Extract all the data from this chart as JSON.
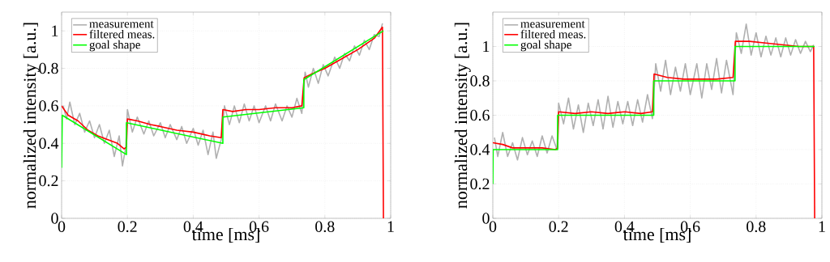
{
  "chart_data": [
    {
      "type": "line",
      "xlabel": "time [ms]",
      "ylabel": "normalized intensity [a.u.]",
      "xlim": [
        0,
        1
      ],
      "ylim": [
        0,
        1.1
      ],
      "xticks": [
        0,
        0.2,
        0.4,
        0.6,
        0.8,
        1
      ],
      "yticks": [
        0,
        0.2,
        0.4,
        0.6,
        0.8,
        1
      ],
      "grid": true,
      "legend": "top left",
      "series": [
        {
          "name": "measurement",
          "color": "#b0b0b0",
          "x": [
            0.005,
            0.015,
            0.025,
            0.04,
            0.055,
            0.07,
            0.085,
            0.1,
            0.115,
            0.13,
            0.145,
            0.16,
            0.175,
            0.185,
            0.195,
            0.2,
            0.215,
            0.23,
            0.25,
            0.265,
            0.28,
            0.3,
            0.315,
            0.33,
            0.35,
            0.365,
            0.38,
            0.4,
            0.415,
            0.43,
            0.445,
            0.46,
            0.47,
            0.485,
            0.495,
            0.51,
            0.525,
            0.54,
            0.555,
            0.57,
            0.585,
            0.6,
            0.62,
            0.635,
            0.65,
            0.67,
            0.685,
            0.7,
            0.715,
            0.73,
            0.74,
            0.75,
            0.765,
            0.78,
            0.795,
            0.81,
            0.83,
            0.845,
            0.86,
            0.875,
            0.89,
            0.905,
            0.92,
            0.935,
            0.95,
            0.965,
            0.975
          ],
          "values": [
            0.6,
            0.53,
            0.62,
            0.5,
            0.56,
            0.46,
            0.52,
            0.43,
            0.5,
            0.4,
            0.47,
            0.33,
            0.44,
            0.28,
            0.38,
            0.58,
            0.46,
            0.54,
            0.45,
            0.52,
            0.44,
            0.51,
            0.43,
            0.5,
            0.42,
            0.49,
            0.4,
            0.48,
            0.39,
            0.47,
            0.34,
            0.46,
            0.32,
            0.42,
            0.6,
            0.5,
            0.6,
            0.51,
            0.61,
            0.52,
            0.6,
            0.51,
            0.6,
            0.52,
            0.61,
            0.52,
            0.6,
            0.54,
            0.64,
            0.56,
            0.78,
            0.7,
            0.8,
            0.72,
            0.82,
            0.76,
            0.86,
            0.8,
            0.88,
            0.84,
            0.92,
            0.87,
            0.95,
            0.9,
            0.98,
            0.97,
            1.04
          ]
        },
        {
          "name": "filtered meas.",
          "color": "#ff0000",
          "x": [
            0,
            0.02,
            0.05,
            0.08,
            0.11,
            0.14,
            0.17,
            0.19,
            0.197,
            0.2,
            0.23,
            0.27,
            0.3,
            0.35,
            0.4,
            0.45,
            0.485,
            0.49,
            0.52,
            0.56,
            0.6,
            0.65,
            0.7,
            0.73,
            0.737,
            0.76,
            0.8,
            0.85,
            0.9,
            0.95,
            0.975,
            0.978
          ],
          "values": [
            0.6,
            0.55,
            0.52,
            0.47,
            0.44,
            0.42,
            0.4,
            0.37,
            0.38,
            0.53,
            0.52,
            0.5,
            0.49,
            0.47,
            0.46,
            0.44,
            0.43,
            0.58,
            0.57,
            0.58,
            0.58,
            0.59,
            0.59,
            0.6,
            0.75,
            0.77,
            0.8,
            0.85,
            0.9,
            0.96,
            1.02,
            0
          ]
        },
        {
          "name": "goal shape",
          "color": "#00ff00",
          "x": [
            0,
            0.002,
            0.197,
            0.197,
            0.49,
            0.49,
            0.736,
            0.736,
            0.978
          ],
          "values": [
            0.27,
            0.55,
            0.34,
            0.51,
            0.4,
            0.54,
            0.59,
            0.74,
            1.0
          ]
        }
      ]
    },
    {
      "type": "line",
      "xlabel": "time [ms]",
      "ylabel": "normalized intensity [a.u.]",
      "xlim": [
        0,
        1
      ],
      "ylim": [
        0,
        1.2
      ],
      "xticks": [
        0,
        0.2,
        0.4,
        0.6,
        0.8,
        1
      ],
      "yticks": [
        0,
        0.2,
        0.4,
        0.6,
        0.8,
        1
      ],
      "grid": true,
      "legend": "top left",
      "series": [
        {
          "name": "measurement",
          "color": "#b0b0b0",
          "x": [
            0.005,
            0.015,
            0.03,
            0.045,
            0.06,
            0.075,
            0.09,
            0.105,
            0.12,
            0.135,
            0.15,
            0.165,
            0.18,
            0.195,
            0.2,
            0.215,
            0.23,
            0.245,
            0.26,
            0.275,
            0.29,
            0.305,
            0.32,
            0.335,
            0.35,
            0.365,
            0.38,
            0.395,
            0.41,
            0.425,
            0.44,
            0.455,
            0.47,
            0.485,
            0.495,
            0.51,
            0.525,
            0.54,
            0.555,
            0.57,
            0.585,
            0.6,
            0.62,
            0.635,
            0.65,
            0.665,
            0.68,
            0.695,
            0.71,
            0.73,
            0.74,
            0.755,
            0.77,
            0.785,
            0.8,
            0.815,
            0.83,
            0.845,
            0.86,
            0.875,
            0.89,
            0.905,
            0.92,
            0.935,
            0.95,
            0.965,
            0.975
          ],
          "values": [
            0.47,
            0.36,
            0.5,
            0.36,
            0.44,
            0.34,
            0.47,
            0.37,
            0.45,
            0.36,
            0.48,
            0.38,
            0.48,
            0.4,
            0.67,
            0.55,
            0.7,
            0.52,
            0.66,
            0.5,
            0.67,
            0.54,
            0.69,
            0.52,
            0.71,
            0.53,
            0.68,
            0.55,
            0.68,
            0.54,
            0.69,
            0.56,
            0.72,
            0.58,
            0.9,
            0.74,
            0.92,
            0.72,
            0.88,
            0.74,
            0.9,
            0.72,
            0.9,
            0.7,
            0.9,
            0.75,
            0.93,
            0.73,
            0.92,
            0.72,
            1.08,
            0.96,
            1.13,
            0.95,
            1.08,
            0.94,
            1.06,
            0.95,
            1.05,
            0.94,
            1.05,
            0.95,
            1.04,
            0.96,
            1.03,
            0.97,
            1.01
          ]
        },
        {
          "name": "filtered meas.",
          "color": "#ff0000",
          "x": [
            0,
            0.03,
            0.06,
            0.1,
            0.15,
            0.19,
            0.197,
            0.2,
            0.25,
            0.3,
            0.35,
            0.4,
            0.45,
            0.485,
            0.49,
            0.53,
            0.58,
            0.63,
            0.68,
            0.73,
            0.737,
            0.78,
            0.83,
            0.88,
            0.93,
            0.975,
            0.978
          ],
          "values": [
            0.44,
            0.43,
            0.41,
            0.41,
            0.41,
            0.4,
            0.41,
            0.62,
            0.61,
            0.62,
            0.61,
            0.62,
            0.61,
            0.62,
            0.84,
            0.82,
            0.81,
            0.81,
            0.81,
            0.82,
            1.03,
            1.03,
            1.02,
            1.01,
            1.0,
            1.0,
            0
          ]
        },
        {
          "name": "goal shape",
          "color": "#00ff00",
          "x": [
            0,
            0.001,
            0.197,
            0.197,
            0.489,
            0.489,
            0.736,
            0.736,
            0.978
          ],
          "values": [
            0.2,
            0.4,
            0.4,
            0.6,
            0.6,
            0.8,
            0.8,
            1.0,
            1.0
          ]
        }
      ]
    }
  ]
}
